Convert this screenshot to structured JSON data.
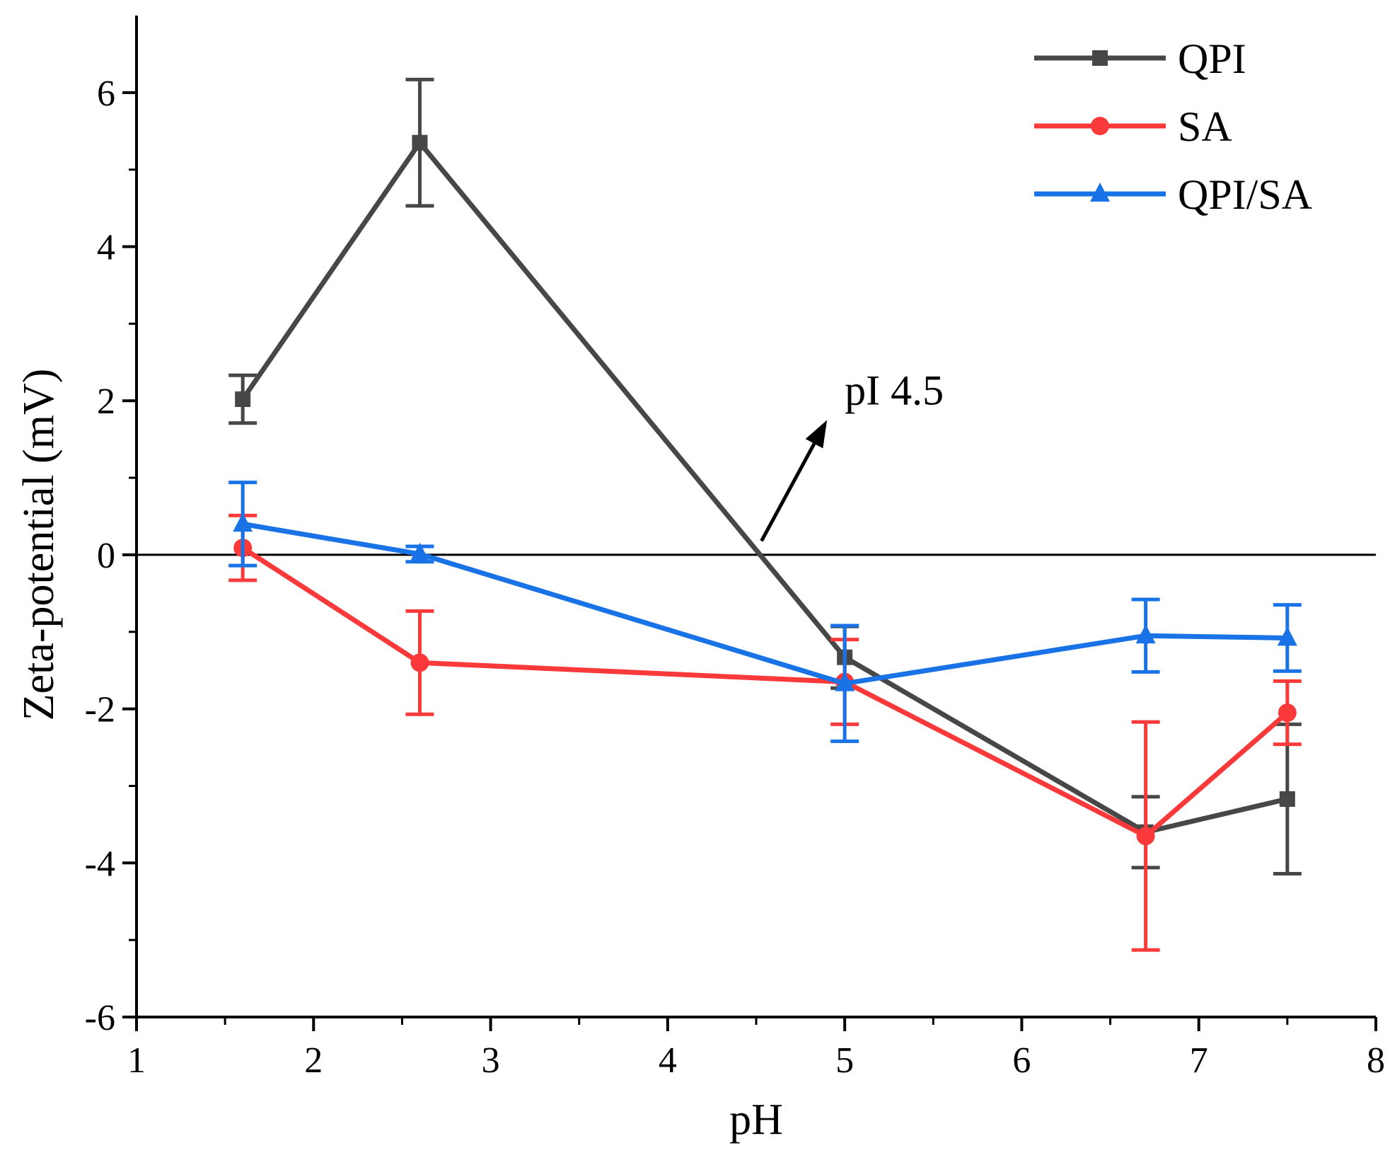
{
  "chart_data": {
    "type": "line",
    "xlabel": "pH",
    "ylabel": "Zeta-potential (mV)",
    "xlim": [
      1,
      8
    ],
    "ylim": [
      -6,
      7
    ],
    "xticks": [
      1,
      2,
      3,
      4,
      5,
      6,
      7,
      8
    ],
    "yticks": [
      -6,
      -4,
      -2,
      0,
      2,
      4,
      6
    ],
    "zero_line": true,
    "grid": false,
    "legend_position": "top-right",
    "series": [
      {
        "name": "QPI",
        "color": "#474747",
        "marker": "square",
        "x": [
          1.6,
          2.6,
          5.0,
          6.7,
          7.5
        ],
        "y": [
          2.02,
          5.35,
          -1.33,
          -3.6,
          -3.17
        ],
        "err": [
          0.31,
          0.82,
          0.4,
          0.46,
          0.97
        ]
      },
      {
        "name": "SA",
        "color": "#fa3a3a",
        "marker": "circle",
        "x": [
          1.6,
          2.6,
          5.0,
          6.7,
          7.5
        ],
        "y": [
          0.09,
          -1.4,
          -1.65,
          -3.65,
          -2.05
        ],
        "err": [
          0.42,
          0.67,
          0.55,
          1.48,
          0.41
        ]
      },
      {
        "name": "QPI/SA",
        "color": "#1a73e6",
        "marker": "triangle",
        "x": [
          1.6,
          2.6,
          5.0,
          6.7,
          7.5
        ],
        "y": [
          0.4,
          0.01,
          -1.67,
          -1.05,
          -1.08
        ],
        "err": [
          0.54,
          0.1,
          0.75,
          0.47,
          0.43
        ]
      }
    ],
    "annotations": [
      {
        "text": "pI 4.5",
        "arrow_from": [
          4.53,
          0.18
        ],
        "arrow_to": [
          4.9,
          1.75
        ],
        "text_at": [
          5.0,
          1.95
        ]
      }
    ]
  }
}
